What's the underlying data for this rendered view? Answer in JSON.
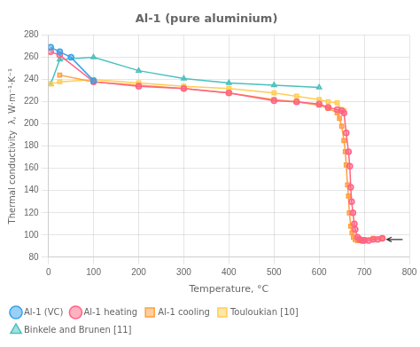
{
  "chart_data": {
    "type": "line",
    "title": "Al-1 (pure aluminium)",
    "xlabel": "Temperature, °C",
    "ylabel": "Thermal conductivity  λ, W·m⁻¹·K⁻¹",
    "xlim": [
      0,
      800
    ],
    "ylim": [
      80,
      280
    ],
    "xticks": [
      0,
      100,
      200,
      300,
      400,
      500,
      600,
      700,
      800
    ],
    "yticks": [
      80,
      100,
      120,
      140,
      160,
      180,
      200,
      220,
      240,
      260,
      280
    ],
    "grid": true,
    "legend": "lower left",
    "series": [
      {
        "name": "Al-1 (VC)",
        "marker": "circle",
        "x": [
          5,
          25,
          50,
          100
        ],
        "values": [
          269,
          265,
          260,
          239
        ]
      },
      {
        "name": "Al-1 heating",
        "marker": "circle",
        "x": [
          5,
          25,
          100,
          200,
          300,
          400,
          500,
          550,
          600,
          620,
          640,
          650,
          655,
          660,
          665,
          668,
          670,
          672,
          675,
          678,
          680,
          685,
          690,
          695,
          700,
          710,
          720,
          730,
          740
        ],
        "values": [
          265,
          262,
          238,
          234,
          232,
          228,
          221,
          220,
          218,
          215,
          213,
          212,
          210,
          192,
          175,
          162,
          143,
          130,
          120,
          110,
          105,
          98,
          96,
          95,
          95,
          95,
          96,
          96,
          97
        ]
      },
      {
        "name": "Al-1 cooling",
        "marker": "square",
        "x": [
          740,
          720,
          700,
          690,
          685,
          680,
          676,
          673,
          670,
          667,
          665,
          663,
          660,
          658,
          655,
          650,
          645,
          640,
          620,
          600,
          550,
          500,
          400,
          300,
          200,
          100,
          25
        ],
        "values": [
          97,
          97,
          96,
          95,
          95,
          96,
          98,
          102,
          108,
          120,
          135,
          145,
          163,
          175,
          185,
          198,
          205,
          210,
          214,
          217,
          220,
          222,
          228,
          232,
          235,
          238,
          244
        ]
      },
      {
        "name": "Touloukian [10]",
        "marker": "square",
        "x": [
          5,
          25,
          100,
          200,
          300,
          400,
          500,
          550,
          600,
          620,
          640,
          650,
          655
        ],
        "values": [
          236,
          238,
          240,
          237,
          234,
          232,
          228,
          225,
          222,
          220,
          219,
          213,
          212
        ]
      },
      {
        "name": "Binkele and Brunen [11]",
        "marker": "triangle",
        "x": [
          5,
          25,
          100,
          200,
          300,
          400,
          500,
          600
        ],
        "values": [
          236,
          258,
          260,
          248,
          241,
          237,
          235,
          233
        ]
      }
    ],
    "arrow": {
      "from": [
        785,
        96
      ],
      "to": [
        750,
        96
      ]
    }
  }
}
